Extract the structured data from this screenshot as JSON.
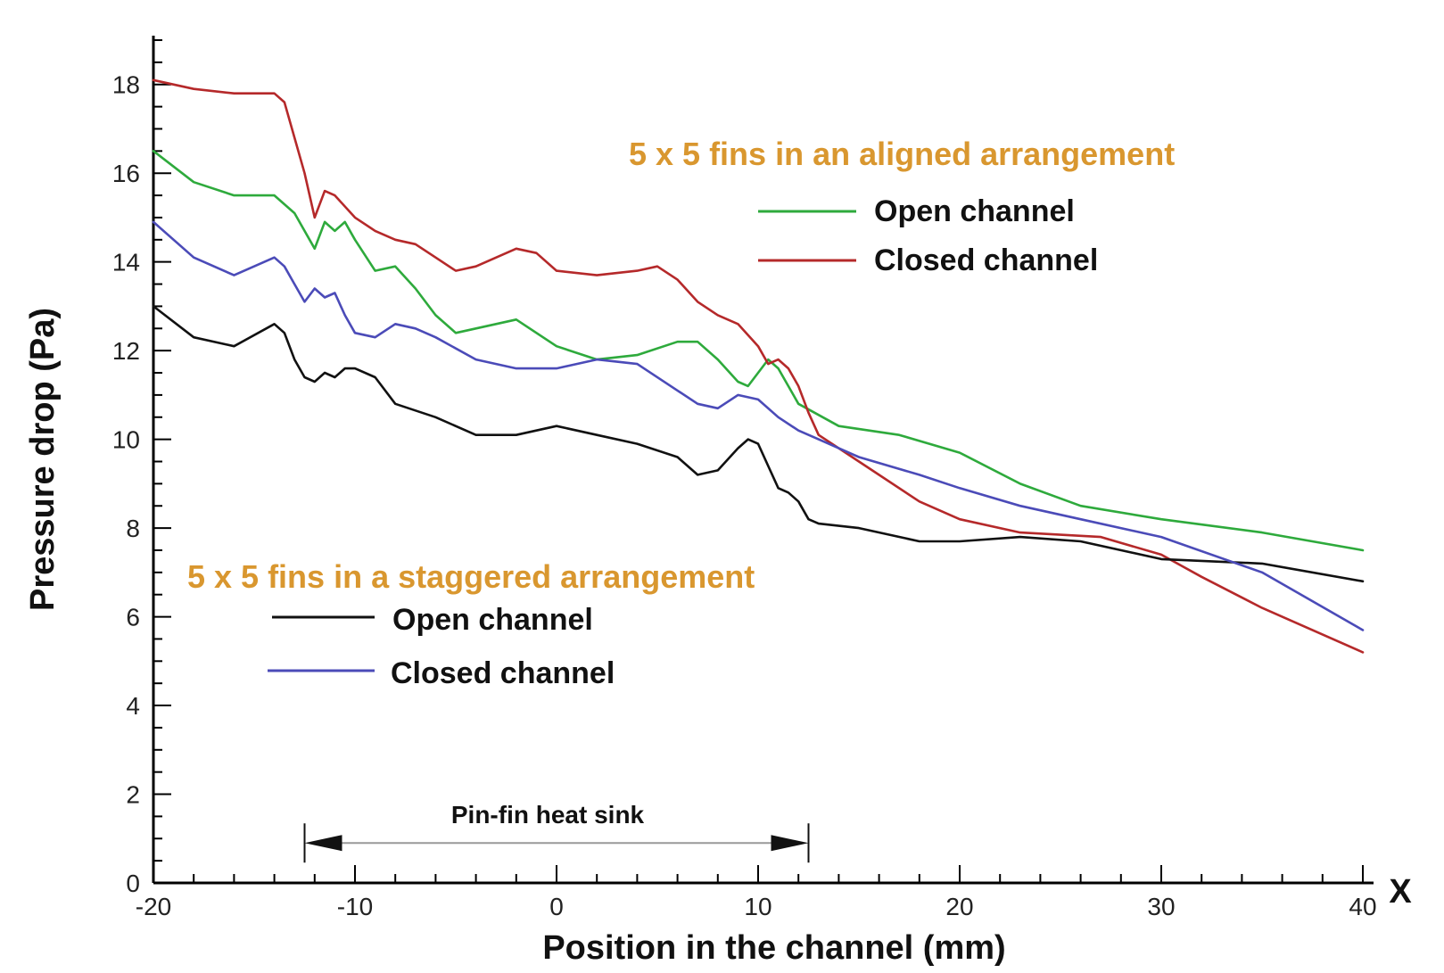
{
  "chart_data": {
    "type": "line",
    "xlabel": "Position in the channel (mm)",
    "ylabel": "Pressure drop (Pa)",
    "x_axis_symbol": "X",
    "xlim": [
      -20,
      40
    ],
    "ylim": [
      0,
      19
    ],
    "x_ticks": [
      -20,
      -10,
      0,
      10,
      20,
      30,
      40
    ],
    "y_ticks": [
      0,
      2,
      4,
      6,
      8,
      10,
      12,
      14,
      16,
      18
    ],
    "grid": false,
    "groups": [
      {
        "title": "5 x 5 fins in an aligned arrangement",
        "legend_placement": "top-right",
        "series_names": [
          "Open channel",
          "Closed channel"
        ]
      },
      {
        "title": "5 x 5 fins in a staggered arrangement",
        "legend_placement": "center-left",
        "series_names": [
          "Open channel",
          "Closed channel"
        ]
      }
    ],
    "series": [
      {
        "name": "Open channel",
        "group": "5 x 5 fins in an aligned arrangement",
        "color": "#2EAA3C",
        "x": [
          -20,
          -18,
          -16,
          -14,
          -13,
          -12,
          -11.5,
          -11,
          -10.5,
          -10,
          -9,
          -8,
          -7,
          -6,
          -5,
          -4,
          -2,
          0,
          2,
          4,
          6,
          7,
          8,
          9,
          9.5,
          10.5,
          11,
          12,
          14,
          17,
          20,
          23,
          26,
          30,
          35,
          40
        ],
        "y": [
          16.5,
          15.8,
          15.5,
          15.5,
          15.1,
          14.3,
          14.9,
          14.7,
          14.9,
          14.5,
          13.8,
          13.9,
          13.4,
          12.8,
          12.4,
          12.5,
          12.7,
          12.1,
          11.8,
          11.9,
          12.2,
          12.2,
          11.8,
          11.3,
          11.2,
          11.8,
          11.6,
          10.8,
          10.3,
          10.1,
          9.7,
          9.0,
          8.5,
          8.2,
          7.9,
          7.5
        ]
      },
      {
        "name": "Closed channel",
        "group": "5 x 5 fins in an aligned arrangement",
        "color": "#B5292A",
        "x": [
          -20,
          -18,
          -16,
          -14,
          -13.5,
          -13,
          -12.5,
          -12,
          -11.5,
          -11,
          -10,
          -9,
          -8,
          -7,
          -6,
          -5,
          -4,
          -2,
          -1,
          0,
          2,
          4,
          5,
          6,
          7,
          8,
          9,
          10,
          10.5,
          11,
          11.5,
          12,
          12.5,
          13,
          15,
          18,
          20,
          23,
          27,
          30,
          32,
          35,
          40
        ],
        "y": [
          18.1,
          17.9,
          17.8,
          17.8,
          17.6,
          16.8,
          16.0,
          15.0,
          15.6,
          15.5,
          15.0,
          14.7,
          14.5,
          14.4,
          14.1,
          13.8,
          13.9,
          14.3,
          14.2,
          13.8,
          13.7,
          13.8,
          13.9,
          13.6,
          13.1,
          12.8,
          12.6,
          12.1,
          11.7,
          11.8,
          11.6,
          11.2,
          10.6,
          10.1,
          9.5,
          8.6,
          8.2,
          7.9,
          7.8,
          7.4,
          6.9,
          6.2,
          5.2
        ]
      },
      {
        "name": "Open channel",
        "group": "5 x 5 fins in a staggered arrangement",
        "color": "#111111",
        "x": [
          -20,
          -18,
          -16,
          -14,
          -13.5,
          -13,
          -12.5,
          -12,
          -11.5,
          -11,
          -10.5,
          -10,
          -9,
          -8,
          -6,
          -4,
          -2,
          0,
          2,
          4,
          6,
          7,
          8,
          9,
          9.5,
          10,
          10.5,
          11,
          11.5,
          12,
          12.5,
          13,
          15,
          18,
          20,
          23,
          26,
          30,
          35,
          40
        ],
        "y": [
          13.0,
          12.3,
          12.1,
          12.6,
          12.4,
          11.8,
          11.4,
          11.3,
          11.5,
          11.4,
          11.6,
          11.6,
          11.4,
          10.8,
          10.5,
          10.1,
          10.1,
          10.3,
          10.1,
          9.9,
          9.6,
          9.2,
          9.3,
          9.8,
          10.0,
          9.9,
          9.4,
          8.9,
          8.8,
          8.6,
          8.2,
          8.1,
          8.0,
          7.7,
          7.7,
          7.8,
          7.7,
          7.3,
          7.2,
          6.8
        ]
      },
      {
        "name": "Closed channel",
        "group": "5 x 5 fins in a staggered arrangement",
        "color": "#4B4BB8",
        "x": [
          -20,
          -18,
          -16,
          -14,
          -13.5,
          -13,
          -12.5,
          -12,
          -11.5,
          -11,
          -10.5,
          -10,
          -9,
          -8,
          -7,
          -6,
          -4,
          -2,
          0,
          2,
          4,
          6,
          7,
          8,
          9,
          10,
          11,
          12,
          13,
          15,
          18,
          20,
          23,
          26,
          30,
          35,
          40
        ],
        "y": [
          14.9,
          14.1,
          13.7,
          14.1,
          13.9,
          13.5,
          13.1,
          13.4,
          13.2,
          13.3,
          12.8,
          12.4,
          12.3,
          12.6,
          12.5,
          12.3,
          11.8,
          11.6,
          11.6,
          11.8,
          11.7,
          11.1,
          10.8,
          10.7,
          11.0,
          10.9,
          10.5,
          10.2,
          10.0,
          9.6,
          9.2,
          8.9,
          8.5,
          8.2,
          7.8,
          7.0,
          5.7
        ]
      }
    ],
    "annotation": {
      "label": "Pin-fin heat sink",
      "x_start": -12.5,
      "x_end": 12.5,
      "y": 0.9
    }
  }
}
